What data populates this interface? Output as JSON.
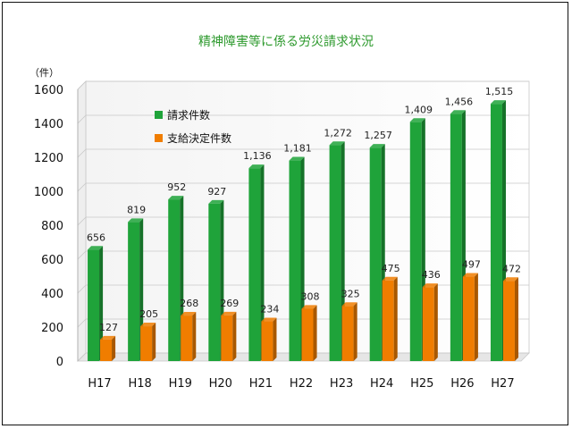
{
  "chart_data": {
    "type": "bar",
    "title": "精神障害等に係る労災請求状況",
    "unit_label": "（件）",
    "categories": [
      "H17",
      "H18",
      "H19",
      "H20",
      "H21",
      "H22",
      "H23",
      "H24",
      "H25",
      "H26",
      "H27"
    ],
    "series": [
      {
        "name": "請求件数",
        "color": "#1fa33a",
        "values": [
          656,
          819,
          952,
          927,
          1136,
          1181,
          1272,
          1257,
          1409,
          1456,
          1515
        ],
        "labels": [
          "656",
          "819",
          "952",
          "927",
          "1,136",
          "1,181",
          "1,272",
          "1,257",
          "1,409",
          "1,456",
          "1,515"
        ]
      },
      {
        "name": "支給決定件数",
        "color": "#f07d00",
        "values": [
          127,
          205,
          268,
          269,
          234,
          308,
          325,
          475,
          436,
          497,
          472
        ],
        "labels": [
          "127",
          "205",
          "268",
          "269",
          "234",
          "308",
          "325",
          "475",
          "436",
          "497",
          "472"
        ]
      }
    ],
    "yticks": [
      0,
      200,
      400,
      600,
      800,
      1000,
      1200,
      1400,
      1600
    ],
    "ylim": [
      0,
      1600
    ],
    "grid": true,
    "legend_position": "top-left"
  }
}
